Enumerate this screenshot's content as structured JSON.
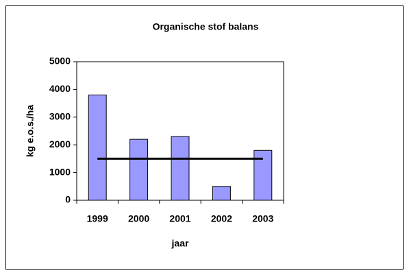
{
  "chart_data": {
    "type": "bar",
    "title": "Organische stof balans",
    "x_label": "jaar",
    "y_label": "kg e.o.s./ha",
    "categories": [
      "1999",
      "2000",
      "2001",
      "2002",
      "2003"
    ],
    "series": [
      {
        "type": "bar",
        "color": "#9999ff",
        "values": [
          3800,
          2200,
          2300,
          500,
          1800
        ]
      },
      {
        "type": "line",
        "color": "#000000",
        "values": [
          1500,
          1500,
          1500,
          1500,
          1500
        ]
      }
    ],
    "ylim": [
      0,
      5000
    ],
    "yticks": [
      0,
      1000,
      2000,
      3000,
      4000,
      5000
    ],
    "grid": false
  }
}
